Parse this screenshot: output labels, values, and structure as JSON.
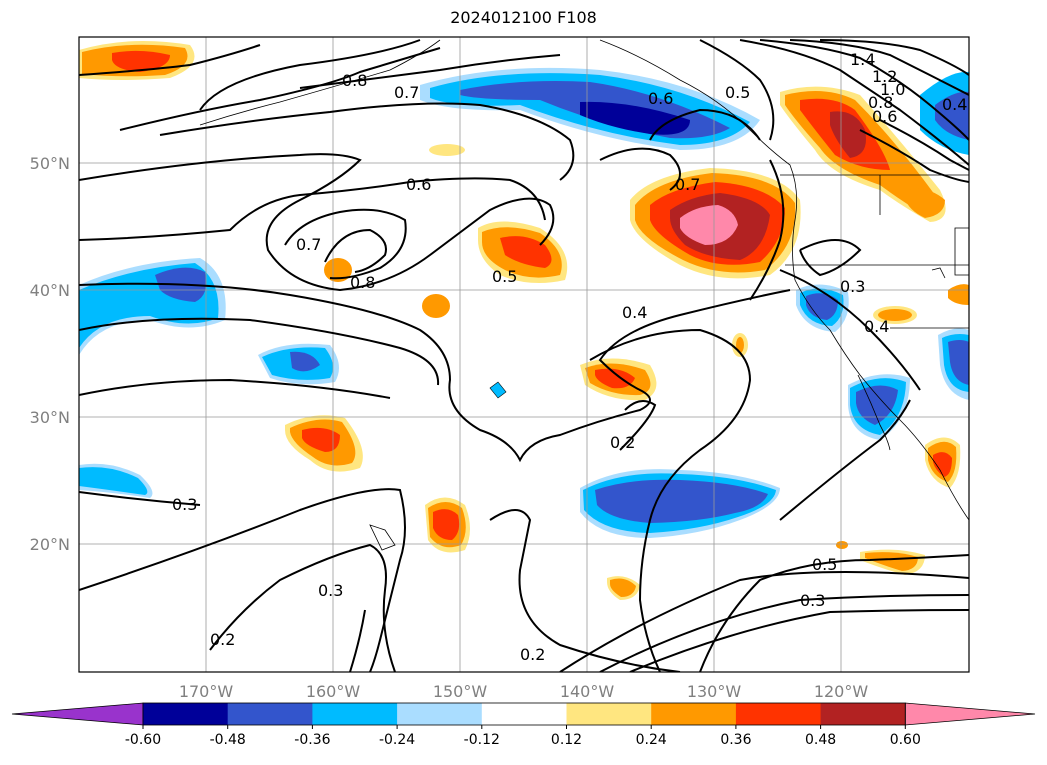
{
  "title": "2024012100 F108",
  "lat_labels": [
    "50°N",
    "40°N",
    "30°N",
    "20°N"
  ],
  "lon_labels": [
    "170°W",
    "160°W",
    "150°W",
    "140°W",
    "130°W",
    "120°W"
  ],
  "contour_labels": [
    "1.4",
    "1.2",
    "1.0",
    "0.8",
    "0.6",
    "0.8",
    "0.7",
    "0.6",
    "0.6",
    "0.7",
    "0.8",
    "0.7",
    "0.5",
    "0.5",
    "0.4",
    "0.3",
    "0.4",
    "0.3",
    "0.2",
    "0.3",
    "0.2",
    "0.2",
    "0.5",
    "0.3",
    "0.4"
  ],
  "colorbar": {
    "ticks": [
      "-0.60",
      "-0.48",
      "-0.36",
      "-0.24",
      "-0.12",
      "0.12",
      "0.24",
      "0.36",
      "0.48",
      "0.60"
    ],
    "colors": [
      "#9933cc",
      "#000099",
      "#3355cc",
      "#00bbff",
      "#aaddff",
      "#ffffff",
      "#ffe680",
      "#ff9900",
      "#ff3300",
      "#b22222",
      "#ff88aa"
    ]
  }
}
